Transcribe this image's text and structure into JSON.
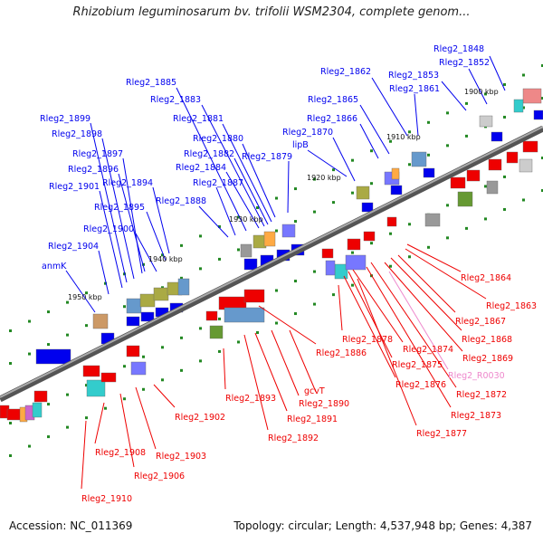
{
  "title": "Rhizobium leguminosarum bv. trifolii WSM2304, complete genom...",
  "accession": "Accession: NC_011369",
  "topology": "Topology: circular; Length: 4,537,948 bp; Genes: 4,387",
  "colors": {
    "forward": "#0000ee",
    "reverse": "#ee0000",
    "rna": "#ee88cc",
    "backbone": "#777777",
    "tick": "#228822"
  },
  "kbp_marks": [
    "1900 kbp",
    "1910 kbp",
    "1920 kbp",
    "1930 kbp",
    "1940 kbp",
    "1950 kbp"
  ],
  "top_labels": [
    "Rleg2_1848",
    "Rleg2_1852",
    "Rleg2_1853",
    "Rleg2_1861",
    "Rleg2_1862",
    "Rleg2_1865",
    "Rleg2_1866",
    "Rleg2_1870",
    "lipB",
    "Rleg2_1879",
    "Rleg2_1880",
    "Rleg2_1881",
    "Rleg2_1882",
    "Rleg2_1883",
    "Rleg2_1884",
    "Rleg2_1885",
    "Rleg2_1887",
    "Rleg2_1888",
    "Rleg2_1894",
    "Rleg2_1895",
    "Rleg2_1896",
    "Rleg2_1897",
    "Rleg2_1898",
    "Rleg2_1899",
    "Rleg2_1900",
    "Rleg2_1901",
    "Rleg2_1904",
    "anmK"
  ],
  "bottom_labels": [
    "Rleg2_1863",
    "Rleg2_1864",
    "Rleg2_1867",
    "Rleg2_1868",
    "Rleg2_1869",
    "Rleg2_R0030",
    "Rleg2_1872",
    "Rleg2_1873",
    "Rleg2_1874",
    "Rleg2_1875",
    "Rleg2_1876",
    "Rleg2_1877",
    "Rleg2_1878",
    "Rleg2_1886",
    "gcvT",
    "Rleg2_1890",
    "Rleg2_1891",
    "Rleg2_1892",
    "Rleg2_1893",
    "Rleg2_1902",
    "Rleg2_1903",
    "Rleg2_1906",
    "Rleg2_1908",
    "Rleg2_1910"
  ]
}
